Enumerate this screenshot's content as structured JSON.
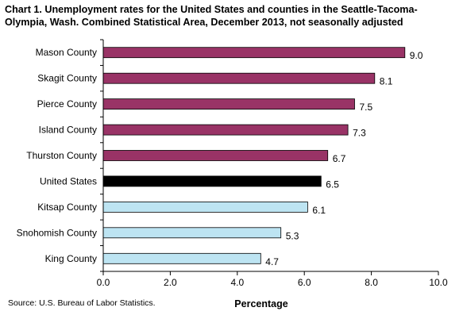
{
  "chart_data": {
    "type": "bar",
    "orientation": "horizontal",
    "title": "Chart 1. Unemployment rates for the United States and counties in the Seattle-Tacoma-Olympia, Wash. Combined Statistical Area, December 2013, not seasonally adjusted",
    "categories": [
      "Mason County",
      "Skagit County",
      "Pierce County",
      "Island County",
      "Thurston County",
      "United States",
      "Kitsap County",
      "Snohomish County",
      "King County"
    ],
    "values": [
      9.0,
      8.1,
      7.5,
      7.3,
      6.7,
      6.5,
      6.1,
      5.3,
      4.7
    ],
    "value_labels": [
      "9.0",
      "8.1",
      "7.5",
      "7.3",
      "6.7",
      "6.5",
      "6.1",
      "5.3",
      "4.7"
    ],
    "bar_colors": [
      "#993366",
      "#993366",
      "#993366",
      "#993366",
      "#993366",
      "#000000",
      "#bde4f2",
      "#bde4f2",
      "#bde4f2"
    ],
    "xlabel": "Percentage",
    "ylabel": "",
    "xlim": [
      0.0,
      10.0
    ],
    "xticks": [
      0,
      2,
      4,
      6,
      8,
      10
    ],
    "xtick_labels": [
      "0.0",
      "2.0",
      "4.0",
      "6.0",
      "8.0",
      "10.0"
    ],
    "grid": false,
    "legend": "none",
    "source": "Source: U.S. Bureau of Labor Statistics."
  }
}
